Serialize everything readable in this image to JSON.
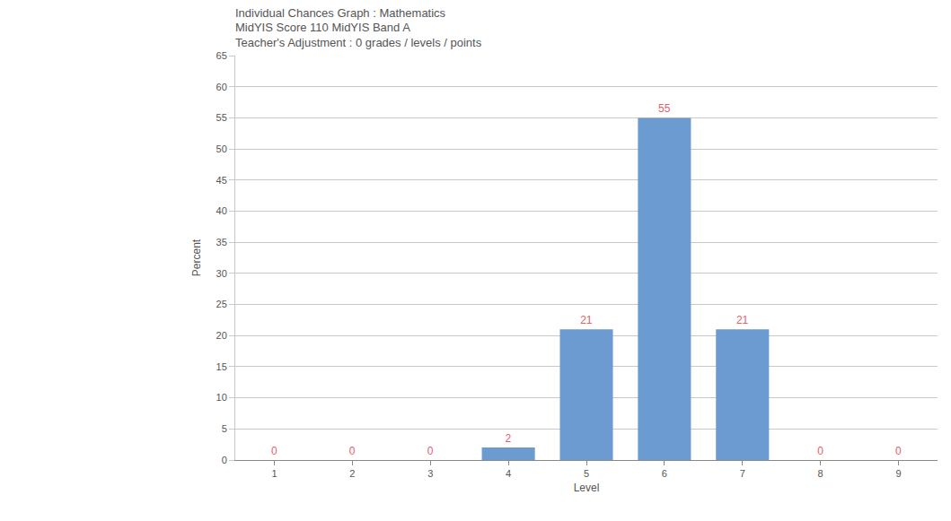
{
  "chart_data": {
    "type": "bar",
    "title": "Individual Chances Graph : Mathematics",
    "subtitle": [
      "MidYIS Score 110 MidYIS Band A",
      "Teacher's Adjustment : 0 grades / levels / points"
    ],
    "x_label": "Level",
    "y_label": "Percent",
    "categories": [
      "1",
      "2",
      "3",
      "4",
      "5",
      "6",
      "7",
      "8",
      "9"
    ],
    "values": [
      0,
      0,
      0,
      2,
      21,
      55,
      21,
      0,
      0
    ],
    "color": "#6b9bd0",
    "ylim": [
      0,
      65
    ],
    "yticks": [
      0,
      5,
      10,
      15,
      20,
      25,
      30,
      35,
      40,
      45,
      50,
      55,
      60,
      65
    ],
    "grid": true,
    "data_labels": true
  }
}
